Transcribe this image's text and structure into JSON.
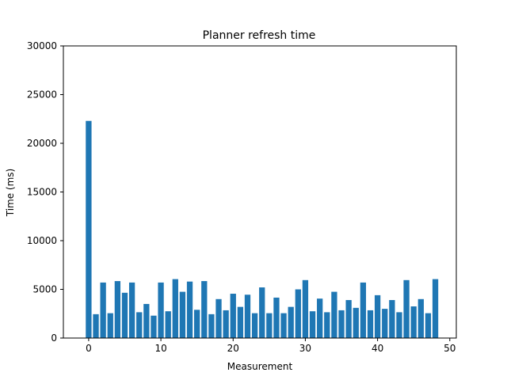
{
  "chart_data": {
    "type": "bar",
    "title": "Planner refresh time",
    "xlabel": "Measurement",
    "ylabel": "Time (ms)",
    "xlim": [
      -3.5,
      50.9
    ],
    "ylim": [
      0,
      30000
    ],
    "xticks": [
      0,
      10,
      20,
      30,
      40,
      50
    ],
    "yticks": [
      0,
      5000,
      10000,
      15000,
      20000,
      25000,
      30000
    ],
    "grid": false,
    "bar_color": "#1f77b4",
    "x": [
      0,
      1,
      2,
      3,
      4,
      5,
      6,
      7,
      8,
      9,
      10,
      11,
      12,
      13,
      14,
      15,
      16,
      17,
      18,
      19,
      20,
      21,
      22,
      23,
      24,
      25,
      26,
      27,
      28,
      29,
      30,
      31,
      32,
      33,
      34,
      35,
      36,
      37,
      38,
      39,
      40,
      41,
      42,
      43,
      44,
      45,
      46,
      47,
      48
    ],
    "values": [
      22300,
      2450,
      5700,
      2550,
      5850,
      4650,
      5700,
      2650,
      3500,
      2300,
      5700,
      2750,
      6050,
      4750,
      5800,
      2900,
      5850,
      2450,
      4000,
      2850,
      4550,
      3200,
      4450,
      2550,
      5200,
      2550,
      4150,
      2550,
      3200,
      5000,
      5950,
      2750,
      4050,
      2650,
      4750,
      2850,
      3900,
      3100,
      5700,
      2850,
      4400,
      3000,
      3900,
      2650,
      5950,
      3250,
      4000,
      2550,
      6050
    ]
  }
}
